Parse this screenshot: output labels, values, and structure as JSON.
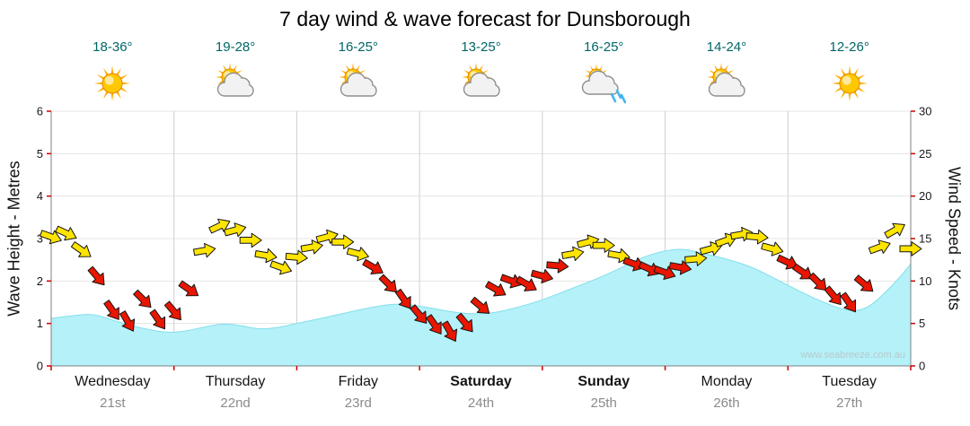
{
  "title": "7 day wind & wave forecast for Dunsborough",
  "watermark": "www.seabreeze.com.au",
  "days": [
    {
      "name": "Wednesday",
      "date": "21st",
      "temp": "18-36°",
      "icon": "sunny",
      "bold": false
    },
    {
      "name": "Thursday",
      "date": "22nd",
      "temp": "19-28°",
      "icon": "partly-cloudy",
      "bold": false
    },
    {
      "name": "Friday",
      "date": "23rd",
      "temp": "16-25°",
      "icon": "partly-cloudy",
      "bold": false
    },
    {
      "name": "Saturday",
      "date": "24th",
      "temp": "13-25°",
      "icon": "partly-cloudy",
      "bold": true
    },
    {
      "name": "Sunday",
      "date": "25th",
      "temp": "16-25°",
      "icon": "rain-showers",
      "bold": true
    },
    {
      "name": "Monday",
      "date": "26th",
      "temp": "14-24°",
      "icon": "partly-cloudy",
      "bold": false
    },
    {
      "name": "Tuesday",
      "date": "27th",
      "temp": "12-26°",
      "icon": "sunny",
      "bold": false
    }
  ],
  "axes": {
    "left_label": "Wave Height - Metres",
    "right_label": "Wind Speed - Knots"
  },
  "colors": {
    "temp_text": "#006666",
    "wave_fill": "#b5f1f8",
    "wave_edge": "#82dfec",
    "arrow_yellow": "#ffe400",
    "arrow_red": "#e81600",
    "grid_h": "#e4e4e4",
    "grid_v": "#cfcfcf",
    "axis": "#808080",
    "tick": "#cc0000",
    "watermark_text": "#b7c9ce"
  },
  "chart_data": {
    "type": "area",
    "overlay": "wind-direction-arrows",
    "title": "7 day wind & wave forecast for Dunsborough",
    "x_categories": [
      "Wednesday 21st",
      "Thursday 22nd",
      "Friday 23rd",
      "Saturday 24th",
      "Sunday 25th",
      "Monday 26th",
      "Tuesday 27th"
    ],
    "x_range_days": [
      0,
      7
    ],
    "wave_series": {
      "name": "Wave Height",
      "unit": "metres",
      "axis_label": "Wave Height - Metres",
      "ylim": [
        0,
        6
      ],
      "ticks": [
        0,
        1,
        2,
        3,
        4,
        5,
        6
      ],
      "points_format": "[day_offset, metres]",
      "points": [
        [
          0,
          1.12
        ],
        [
          0.2,
          1.2
        ],
        [
          0.35,
          1.22
        ],
        [
          0.5,
          1.08
        ],
        [
          0.65,
          0.95
        ],
        [
          0.8,
          0.85
        ],
        [
          0.95,
          0.78
        ],
        [
          1.1,
          0.82
        ],
        [
          1.25,
          0.92
        ],
        [
          1.4,
          1.0
        ],
        [
          1.55,
          0.95
        ],
        [
          1.7,
          0.86
        ],
        [
          1.85,
          0.9
        ],
        [
          2.0,
          1.0
        ],
        [
          2.2,
          1.12
        ],
        [
          2.4,
          1.25
        ],
        [
          2.6,
          1.38
        ],
        [
          2.8,
          1.47
        ],
        [
          3.0,
          1.42
        ],
        [
          3.2,
          1.3
        ],
        [
          3.4,
          1.22
        ],
        [
          3.6,
          1.24
        ],
        [
          3.8,
          1.38
        ],
        [
          4.0,
          1.55
        ],
        [
          4.2,
          1.78
        ],
        [
          4.4,
          2.0
        ],
        [
          4.6,
          2.25
        ],
        [
          4.8,
          2.55
        ],
        [
          5.0,
          2.72
        ],
        [
          5.15,
          2.76
        ],
        [
          5.3,
          2.66
        ],
        [
          5.5,
          2.52
        ],
        [
          5.7,
          2.34
        ],
        [
          5.9,
          2.05
        ],
        [
          6.1,
          1.75
        ],
        [
          6.3,
          1.48
        ],
        [
          6.5,
          1.28
        ],
        [
          6.65,
          1.35
        ],
        [
          6.8,
          1.75
        ],
        [
          6.9,
          2.05
        ],
        [
          7.0,
          2.4
        ]
      ]
    },
    "wind_series": {
      "name": "Wind Speed",
      "unit": "knots",
      "axis_label": "Wind Speed - Knots",
      "ylim": [
        0,
        30
      ],
      "ticks": [
        0,
        5,
        10,
        15,
        20,
        25,
        30
      ],
      "points_format": "[day_offset, knots, arrow_rotation_deg, color_code]",
      "color_codes": {
        "y": "yellow (moderate wind)",
        "r": "red (light wind)"
      },
      "points": [
        [
          0,
          15.2,
          20,
          "y"
        ],
        [
          0.125,
          15.6,
          25,
          "y"
        ],
        [
          0.25,
          13.6,
          35,
          "y"
        ],
        [
          0.375,
          10.5,
          50,
          "r"
        ],
        [
          0.5,
          6.5,
          55,
          "r"
        ],
        [
          0.625,
          5.2,
          60,
          "r"
        ],
        [
          0.75,
          7.8,
          45,
          "r"
        ],
        [
          0.875,
          5.4,
          55,
          "r"
        ],
        [
          1,
          6.4,
          50,
          "r"
        ],
        [
          1.125,
          9,
          35,
          "r"
        ],
        [
          1.25,
          13.6,
          -10,
          "y"
        ],
        [
          1.375,
          16.5,
          -25,
          "y"
        ],
        [
          1.5,
          16,
          -15,
          "y"
        ],
        [
          1.625,
          14.8,
          0,
          "y"
        ],
        [
          1.75,
          13,
          10,
          "y"
        ],
        [
          1.875,
          11.6,
          20,
          "y"
        ],
        [
          2,
          12.8,
          5,
          "y"
        ],
        [
          2.125,
          14,
          -10,
          "y"
        ],
        [
          2.25,
          15.2,
          -15,
          "y"
        ],
        [
          2.375,
          14.6,
          0,
          "y"
        ],
        [
          2.5,
          13.2,
          15,
          "y"
        ],
        [
          2.625,
          11.6,
          30,
          "r"
        ],
        [
          2.75,
          9.6,
          45,
          "r"
        ],
        [
          2.875,
          7.8,
          55,
          "r"
        ],
        [
          3,
          6,
          50,
          "r"
        ],
        [
          3.125,
          4.8,
          55,
          "r"
        ],
        [
          3.25,
          4,
          60,
          "r"
        ],
        [
          3.375,
          5,
          50,
          "r"
        ],
        [
          3.5,
          7,
          40,
          "r"
        ],
        [
          3.625,
          9,
          30,
          "r"
        ],
        [
          3.75,
          10,
          20,
          "r"
        ],
        [
          3.875,
          9.6,
          30,
          "r"
        ],
        [
          4,
          10.6,
          15,
          "r"
        ],
        [
          4.125,
          11.8,
          5,
          "r"
        ],
        [
          4.25,
          13.2,
          -10,
          "y"
        ],
        [
          4.375,
          14.6,
          -15,
          "y"
        ],
        [
          4.5,
          14.2,
          0,
          "y"
        ],
        [
          4.625,
          13,
          10,
          "y"
        ],
        [
          4.75,
          12,
          20,
          "r"
        ],
        [
          4.875,
          11.4,
          25,
          "r"
        ],
        [
          5,
          11,
          20,
          "r"
        ],
        [
          5.125,
          11.6,
          10,
          "r"
        ],
        [
          5.25,
          12.6,
          -5,
          "y"
        ],
        [
          5.375,
          13.8,
          -15,
          "y"
        ],
        [
          5.5,
          14.8,
          -20,
          "y"
        ],
        [
          5.625,
          15.5,
          -10,
          "y"
        ],
        [
          5.75,
          15.2,
          5,
          "y"
        ],
        [
          5.875,
          13.8,
          15,
          "y"
        ],
        [
          6,
          12.2,
          25,
          "r"
        ],
        [
          6.125,
          11,
          35,
          "r"
        ],
        [
          6.25,
          9.8,
          45,
          "r"
        ],
        [
          6.375,
          8.2,
          50,
          "r"
        ],
        [
          6.5,
          7.4,
          55,
          "r"
        ],
        [
          6.625,
          9.6,
          40,
          "r"
        ],
        [
          6.75,
          14,
          -20,
          "y"
        ],
        [
          6.875,
          16,
          -30,
          "y"
        ],
        [
          7,
          13.8,
          0,
          "y"
        ]
      ]
    }
  }
}
